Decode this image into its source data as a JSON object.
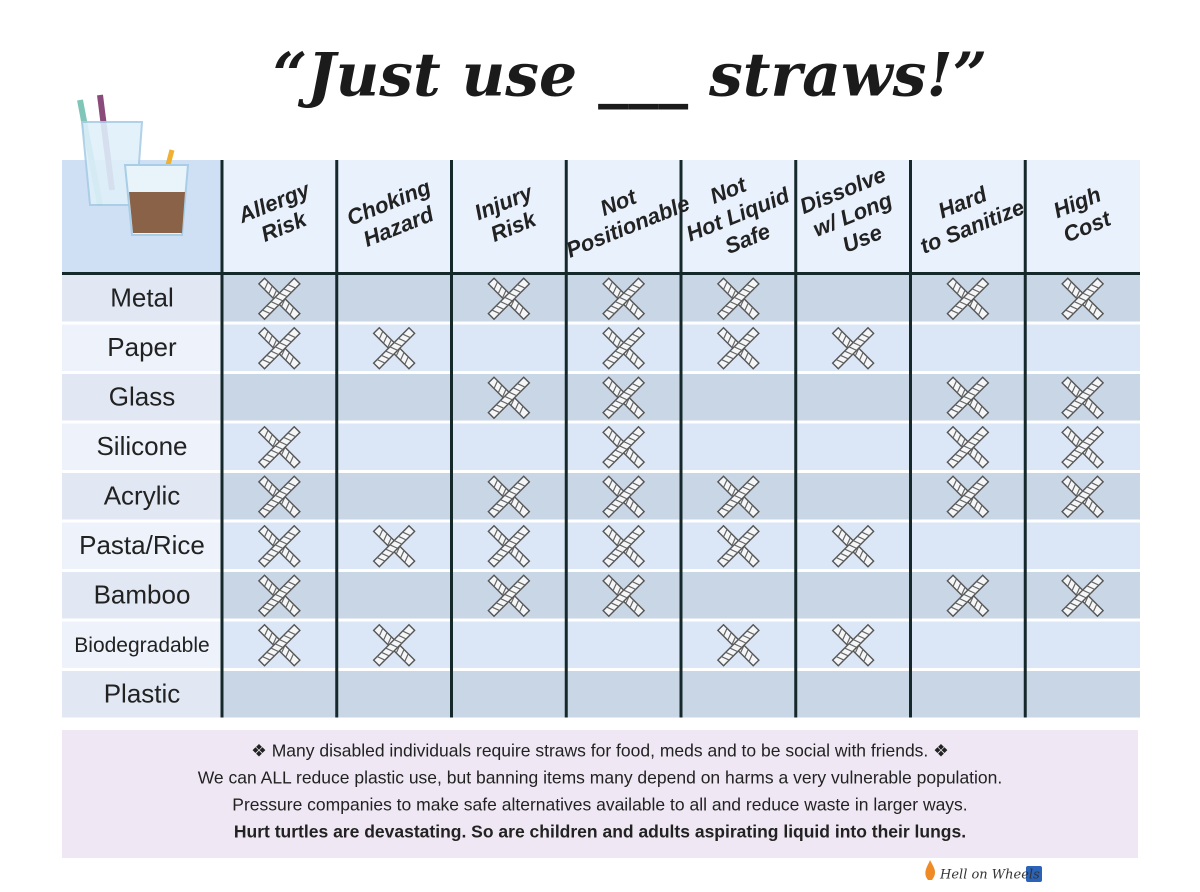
{
  "header": {
    "title": "“Just use ___ straws!”"
  },
  "table": {
    "columns": [
      [
        "Allergy",
        "Risk"
      ],
      [
        "Choking",
        "Hazard"
      ],
      [
        "Injury",
        "Risk"
      ],
      [
        "Not",
        "Positionable"
      ],
      [
        "Not",
        "Hot Liquid",
        "Safe"
      ],
      [
        "Dissolve",
        "w/ Long",
        "Use"
      ],
      [
        "Hard",
        "to Sanitize"
      ],
      [
        "High",
        "Cost"
      ]
    ],
    "rows": [
      {
        "label": "Metal",
        "cells": [
          true,
          false,
          true,
          true,
          true,
          false,
          true,
          true
        ]
      },
      {
        "label": "Paper",
        "cells": [
          true,
          true,
          false,
          true,
          true,
          true,
          false,
          false
        ]
      },
      {
        "label": "Glass",
        "cells": [
          false,
          false,
          true,
          true,
          false,
          false,
          true,
          true
        ]
      },
      {
        "label": "Silicone",
        "cells": [
          true,
          false,
          false,
          true,
          false,
          false,
          true,
          true
        ]
      },
      {
        "label": "Acrylic",
        "cells": [
          true,
          false,
          true,
          true,
          true,
          false,
          true,
          true
        ]
      },
      {
        "label": "Pasta/Rice",
        "cells": [
          true,
          true,
          true,
          true,
          true,
          true,
          false,
          false
        ]
      },
      {
        "label": "Bamboo",
        "cells": [
          true,
          false,
          true,
          true,
          false,
          false,
          true,
          true
        ]
      },
      {
        "label": "Biodegradable",
        "cells": [
          true,
          true,
          false,
          false,
          true,
          true,
          false,
          false
        ]
      },
      {
        "label": "Plastic",
        "cells": [
          false,
          false,
          false,
          false,
          false,
          false,
          false,
          false
        ]
      }
    ]
  },
  "footer": {
    "lines": [
      "❖ Many disabled individuals require straws for food, meds and to be social with friends. ❖",
      "We can ALL reduce plastic use, but banning items many depend on harms a very vulnerable population.",
      "Pressure companies to make safe alternatives available to all and reduce waste in larger ways.",
      "Hurt turtles are devastating. So are children and adults aspirating liquid into their lungs."
    ],
    "brand": "Hell on Wheels"
  }
}
